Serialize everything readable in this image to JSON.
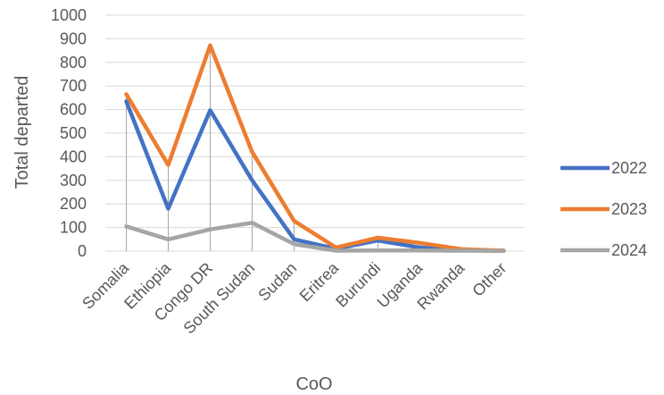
{
  "chart_data": {
    "type": "line",
    "title": "",
    "xlabel": "CoO",
    "ylabel": "Total departed",
    "categories": [
      "Somalia",
      "Ethiopia",
      "Congo DR",
      "South Sudan",
      "Sudan",
      "Eritrea",
      "Burundi",
      "Uganda",
      "Rwanda",
      "Other"
    ],
    "yticks": [
      "0",
      "100",
      "200",
      "300",
      "400",
      "500",
      "600",
      "700",
      "800",
      "900",
      "1000"
    ],
    "ylim": [
      0,
      1000
    ],
    "grid": true,
    "legend_position": "right",
    "series": [
      {
        "name": "2022",
        "color": "#4472C4",
        "values": [
          635,
          180,
          597,
          300,
          50,
          10,
          45,
          15,
          5,
          2
        ]
      },
      {
        "name": "2023",
        "color": "#ED7D31",
        "values": [
          665,
          365,
          872,
          420,
          128,
          15,
          57,
          35,
          8,
          2
        ]
      },
      {
        "name": "2024",
        "color": "#A5A5A5",
        "values": [
          105,
          50,
          92,
          120,
          30,
          2,
          3,
          3,
          2,
          1
        ]
      }
    ]
  }
}
